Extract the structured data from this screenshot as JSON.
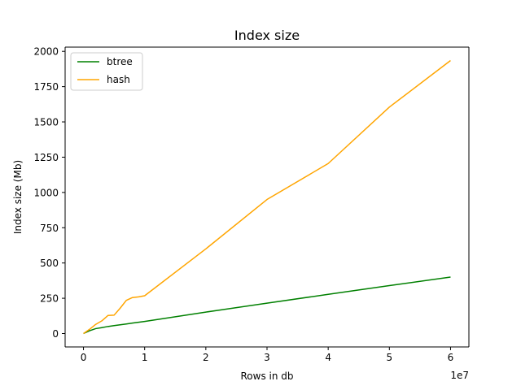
{
  "chart_data": {
    "type": "line",
    "title": "Index size",
    "xlabel": "Rows in db",
    "ylabel": "Index size (Mb)",
    "x_offset_label": "1e7",
    "xlim": [
      -3000000,
      63000000
    ],
    "ylim": [
      -95,
      2030
    ],
    "xticks": [
      0,
      10000000,
      20000000,
      30000000,
      40000000,
      50000000,
      60000000
    ],
    "xtick_labels": [
      "0",
      "1",
      "2",
      "3",
      "4",
      "5",
      "6"
    ],
    "yticks": [
      0,
      250,
      500,
      750,
      1000,
      1250,
      1500,
      1750,
      2000
    ],
    "ytick_labels": [
      "0",
      "250",
      "500",
      "750",
      "1000",
      "1250",
      "1500",
      "1750",
      "2000"
    ],
    "grid": false,
    "legend_position": "top-left",
    "series": [
      {
        "name": "btree",
        "color": "#008000",
        "x": [
          0,
          1000000,
          2000000,
          3000000,
          4000000,
          5000000,
          6000000,
          7000000,
          8000000,
          9000000,
          10000000,
          20000000,
          30000000,
          40000000,
          50000000,
          60000000
        ],
        "y": [
          0,
          20,
          35,
          42,
          50,
          56,
          62,
          68,
          74,
          80,
          86,
          152,
          215,
          278,
          340,
          400
        ]
      },
      {
        "name": "hash",
        "color": "#ffa500",
        "x": [
          0,
          1000000,
          2000000,
          3000000,
          4000000,
          5000000,
          6000000,
          7000000,
          8000000,
          9000000,
          10000000,
          20000000,
          30000000,
          40000000,
          50000000,
          60000000
        ],
        "y": [
          0,
          30,
          65,
          90,
          128,
          130,
          180,
          235,
          255,
          260,
          268,
          600,
          950,
          1205,
          1605,
          1935
        ]
      }
    ]
  }
}
